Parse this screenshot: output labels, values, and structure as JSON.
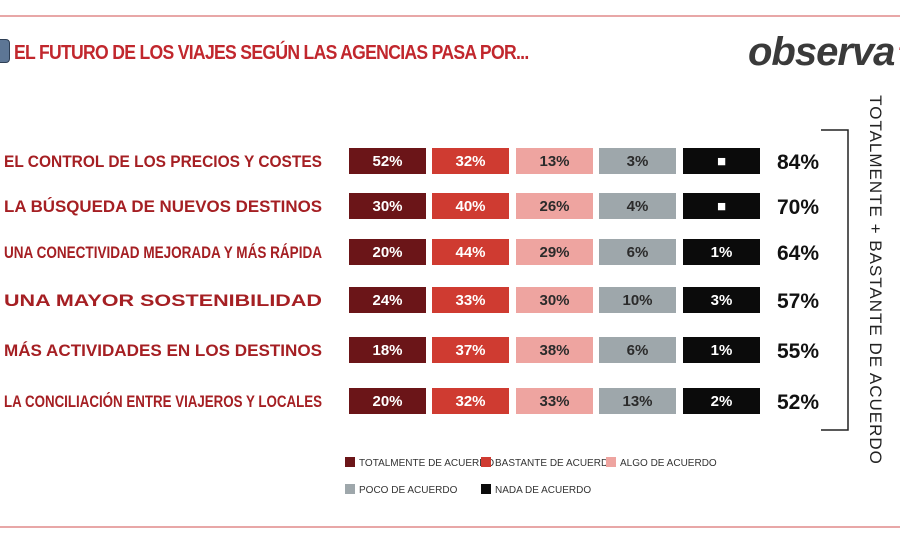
{
  "header": {
    "title": "EL FUTURO DE LOS VIAJES SEGÚN LAS AGENCIAS PASA POR...",
    "brand_main": "observa",
    "brand_accent": "TU"
  },
  "chart_data": {
    "type": "bar",
    "orientation": "horizontal",
    "categories": [
      "EL CONTROL DE LOS PRECIOS Y COSTES",
      "LA BÚSQUEDA DE NUEVOS DESTINOS",
      "UNA CONECTIVIDAD MEJORADA Y MÁS RÁPIDA",
      "UNA MAYOR SOSTENIBILIDAD",
      "MÁS ACTIVIDADES EN LOS DESTINOS",
      "LA CONCILIACIÓN ENTRE VIAJEROS Y LOCALES"
    ],
    "series": [
      {
        "name": "TOTALMENTE DE ACUERDO",
        "color": "#6b1518",
        "text_color": "#ffffff",
        "values": [
          52,
          30,
          20,
          24,
          18,
          20
        ],
        "labels": [
          "52%",
          "30%",
          "20%",
          "24%",
          "18%",
          "20%"
        ]
      },
      {
        "name": "BASTANTE DE ACUERDO",
        "color": "#cf3b31",
        "text_color": "#ffffff",
        "values": [
          32,
          40,
          44,
          33,
          37,
          32
        ],
        "labels": [
          "32%",
          "40%",
          "44%",
          "33%",
          "37%",
          "32%"
        ]
      },
      {
        "name": "ALGO DE ACUERDO",
        "color": "#eea4a0",
        "text_color": "#2b2b2b",
        "values": [
          13,
          26,
          29,
          30,
          38,
          33
        ],
        "labels": [
          "13%",
          "26%",
          "29%",
          "30%",
          "38%",
          "33%"
        ]
      },
      {
        "name": "POCO DE ACUERDO",
        "color": "#9ea7ab",
        "text_color": "#2b2b2b",
        "values": [
          3,
          4,
          6,
          10,
          6,
          13
        ],
        "labels": [
          "3%",
          "4%",
          "6%",
          "10%",
          "6%",
          "13%"
        ]
      },
      {
        "name": "NADA DE ACUERDO",
        "color": "#0b0b0b",
        "text_color": "#ffffff",
        "values": [
          null,
          null,
          1,
          3,
          1,
          2
        ],
        "labels": [
          "■",
          "■",
          "1%",
          "3%",
          "1%",
          "2%"
        ]
      }
    ],
    "totals": [
      "84%",
      "70%",
      "64%",
      "57%",
      "55%",
      "52%"
    ],
    "totals_label": "TOTALMENTE + BASTANTE DE ACUERDO",
    "legend_position": "bottom"
  }
}
